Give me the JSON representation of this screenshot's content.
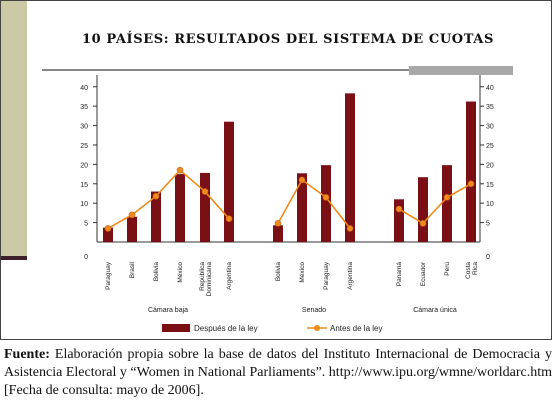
{
  "chart_data": {
    "type": "bar+line",
    "title": "10 PAÍSES: RESULTADOS DEL SISTEMA DE CUOTAS",
    "ylim": [
      0,
      42
    ],
    "yticks": [
      0,
      5,
      10,
      15,
      20,
      25,
      30,
      35,
      40
    ],
    "groups": [
      "Cámara baja",
      "Senado",
      "Cámara única"
    ],
    "group_members": [
      [
        0,
        1,
        2,
        3,
        4,
        5
      ],
      [
        6,
        7,
        8,
        9
      ],
      [
        10,
        11,
        12,
        13
      ]
    ],
    "categories": [
      "Paraguay",
      "Brasil",
      "Bolivia",
      "México",
      "República Dominicana",
      "Argentina",
      "Bolivia",
      "México",
      "Paraguay",
      "Argentina",
      "Panamá",
      "Ecuador",
      "Perú",
      "Costa Rica"
    ],
    "series": [
      {
        "name": "Después de la ley",
        "type": "bar",
        "color": "#7a0f16",
        "values": [
          3.7,
          6.5,
          13,
          17.5,
          17.8,
          31,
          4.3,
          17.7,
          19.8,
          38.3,
          11,
          16.7,
          19.8,
          36.2
        ]
      },
      {
        "name": "Antes de la ley",
        "type": "line",
        "color": "#f08a1c",
        "values": [
          3.5,
          7,
          11.8,
          18.5,
          13,
          6,
          4.8,
          16,
          11.5,
          3.5,
          8.5,
          4.8,
          11.5,
          15
        ]
      }
    ],
    "grid": false,
    "legend": "bottom"
  },
  "source": {
    "label": "Fuente:",
    "text": " Elaboración propia sobre la base de datos del Instituto Internacional de Democracia y Asistencia Electoral y “Women in National Parliaments”. http://www.ipu.org/wmne/worldarc.htm [Fecha de consulta: mayo de 2006]."
  }
}
